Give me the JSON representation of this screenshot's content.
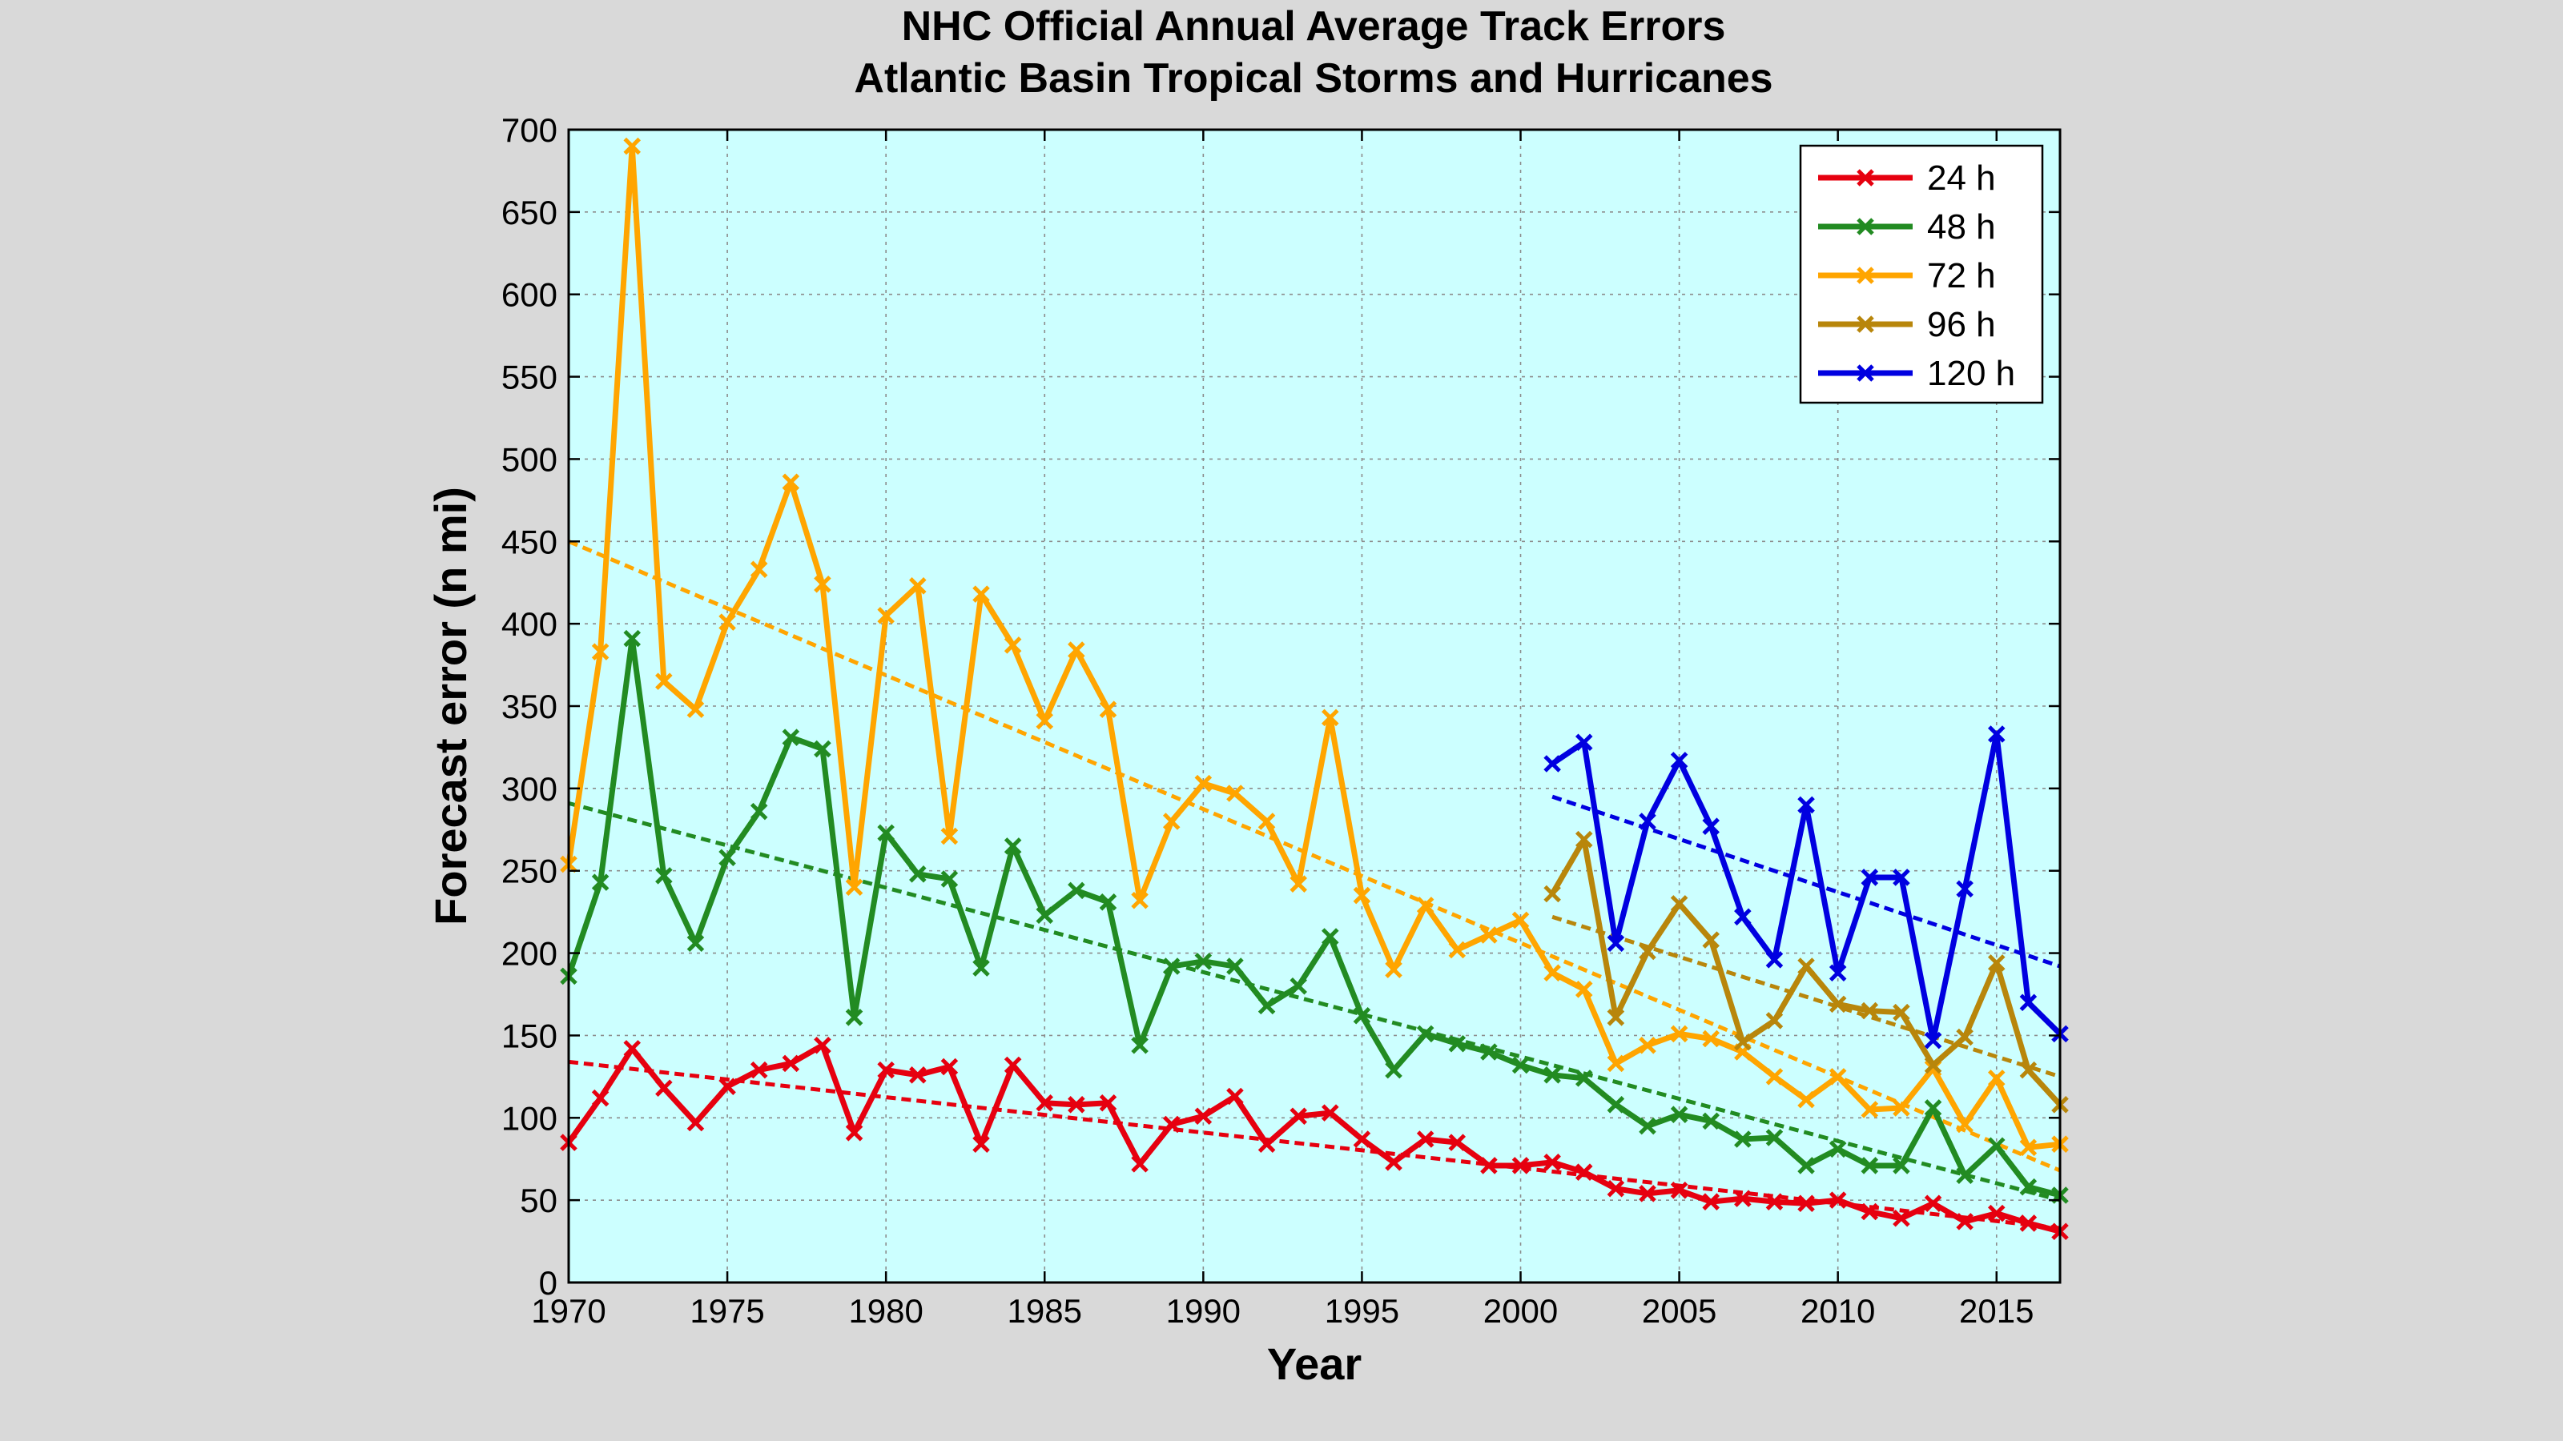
{
  "chart_data": {
    "type": "line",
    "title": [
      "NHC Official Annual Average Track Errors",
      "Atlantic Basin Tropical Storms and Hurricanes"
    ],
    "xlabel": "Year",
    "ylabel": "Forecast error (n mi)",
    "xlim": [
      1970,
      2017
    ],
    "ylim": [
      0,
      700
    ],
    "xticks": [
      1970,
      1975,
      1980,
      1985,
      1990,
      1995,
      2000,
      2005,
      2010,
      2015
    ],
    "yticks": [
      0,
      50,
      100,
      150,
      200,
      250,
      300,
      350,
      400,
      450,
      500,
      550,
      600,
      650,
      700
    ],
    "grid": true,
    "legend_position": "top-right",
    "plot_background": "#ccffff",
    "series": [
      {
        "name": "24 h",
        "color": "#e6000f",
        "x_start": 1970,
        "values": [
          85,
          112,
          142,
          118,
          97,
          119,
          129,
          133,
          144,
          91,
          129,
          126,
          131,
          84,
          132,
          109,
          108,
          109,
          72,
          96,
          101,
          113,
          84,
          101,
          103,
          87,
          73,
          87,
          85,
          71,
          71,
          73,
          67,
          57,
          54,
          56,
          49,
          51,
          49,
          48,
          50,
          43,
          39,
          48,
          37,
          42,
          36,
          31
        ],
        "trend": [
          [
            1970,
            134
          ],
          [
            2017,
            33
          ]
        ]
      },
      {
        "name": "48 h",
        "color": "#228b22",
        "x_start": 1970,
        "values": [
          186,
          243,
          391,
          247,
          206,
          258,
          286,
          331,
          324,
          161,
          273,
          248,
          245,
          191,
          265,
          223,
          238,
          231,
          144,
          192,
          195,
          192,
          168,
          180,
          210,
          162,
          129,
          151,
          145,
          140,
          132,
          126,
          124,
          108,
          95,
          102,
          98,
          87,
          88,
          71,
          81,
          71,
          71,
          106,
          65,
          83,
          58,
          53
        ],
        "trend": [
          [
            1970,
            291
          ],
          [
            2017,
            50
          ]
        ]
      },
      {
        "name": "72 h",
        "color": "#ffa500",
        "x_start": 1970,
        "values": [
          254,
          383,
          690,
          365,
          348,
          401,
          433,
          486,
          424,
          240,
          405,
          423,
          271,
          418,
          387,
          341,
          384,
          348,
          232,
          280,
          303,
          297,
          280,
          242,
          343,
          235,
          190,
          229,
          202,
          211,
          220,
          188,
          178,
          133,
          144,
          151,
          148,
          140,
          125,
          111,
          125,
          105,
          106,
          130,
          96,
          124,
          82,
          84
        ],
        "trend": [
          [
            1970,
            450
          ],
          [
            2017,
            68
          ]
        ]
      },
      {
        "name": "96 h",
        "color": "#b8860b",
        "x_start": 2001,
        "values": [
          236,
          269,
          161,
          201,
          230,
          208,
          146,
          159,
          192,
          169,
          165,
          164,
          132,
          149,
          194,
          129,
          108
        ],
        "trend": [
          [
            2001,
            222
          ],
          [
            2017,
            125
          ]
        ]
      },
      {
        "name": "120 h",
        "color": "#0000e0",
        "x_start": 2001,
        "values": [
          315,
          328,
          206,
          280,
          317,
          277,
          222,
          196,
          290,
          188,
          246,
          246,
          147,
          239,
          333,
          170,
          151
        ],
        "trend": [
          [
            2001,
            295
          ],
          [
            2017,
            192
          ]
        ]
      }
    ]
  }
}
